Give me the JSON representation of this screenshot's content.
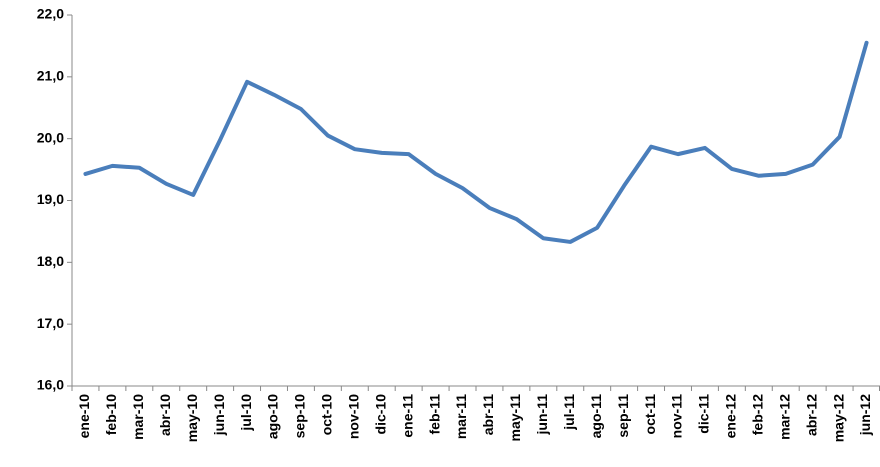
{
  "chart_data": {
    "type": "line",
    "categories": [
      "ene-10",
      "feb-10",
      "mar-10",
      "abr-10",
      "may-10",
      "jun-10",
      "jul-10",
      "ago-10",
      "sep-10",
      "oct-10",
      "nov-10",
      "dic-10",
      "ene-11",
      "feb-11",
      "mar-11",
      "abr-11",
      "may-11",
      "jun-11",
      "jul-11",
      "ago-11",
      "sep-11",
      "oct-11",
      "nov-11",
      "dic-11",
      "ene-12",
      "feb-12",
      "mar-12",
      "abr-12",
      "may-12",
      "jun-12"
    ],
    "values": [
      19.43,
      19.56,
      19.53,
      19.27,
      19.09,
      19.98,
      20.92,
      20.71,
      20.48,
      20.05,
      19.83,
      19.77,
      19.75,
      19.43,
      19.2,
      18.88,
      18.7,
      18.39,
      18.33,
      18.56,
      19.24,
      19.87,
      19.75,
      19.85,
      19.51,
      19.4,
      19.43,
      19.58,
      20.03,
      21.55
    ],
    "color": "#4a7ebb",
    "ylim": [
      16,
      22
    ],
    "yticks": [
      {
        "value": 16,
        "label": "16,0"
      },
      {
        "value": 17,
        "label": "17,0"
      },
      {
        "value": 18,
        "label": "18,0"
      },
      {
        "value": 19,
        "label": "19,0"
      },
      {
        "value": 20,
        "label": "20,0"
      },
      {
        "value": 21,
        "label": "21,0"
      },
      {
        "value": 22,
        "label": "22,0"
      }
    ],
    "grid": false
  }
}
